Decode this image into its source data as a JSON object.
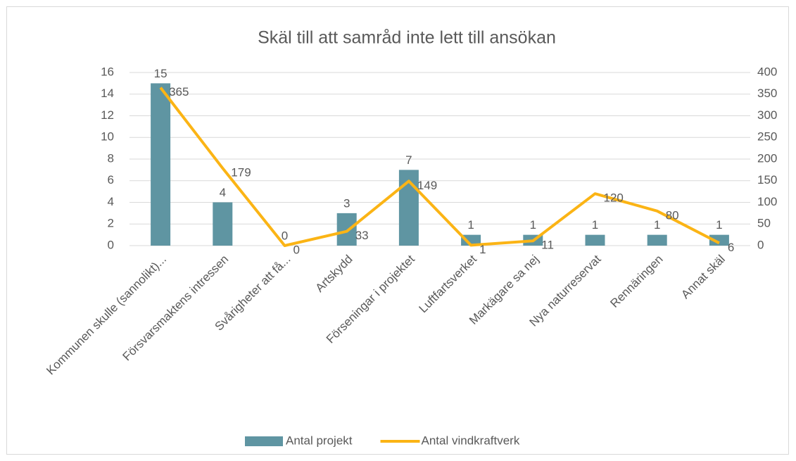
{
  "chart_data": {
    "type": "bar",
    "title": "Skäl till att samråd inte lett till ansökan",
    "categories": [
      "Kommunen skulle (sannolikt)...",
      "Försvarsmaktens intressen",
      "Svårigheter att få...",
      "Artskydd",
      "Förseningar i projektet",
      "Luftfartsverket",
      "Markägare sa nej",
      "Nya naturreservat",
      "Rennäringen",
      "Annat skäl"
    ],
    "series": [
      {
        "name": "Antal projekt",
        "type": "bar",
        "color": "#5f95a2",
        "values": [
          15,
          4,
          0,
          3,
          7,
          1,
          1,
          1,
          1,
          1
        ]
      },
      {
        "name": "Antal vindkraftverk",
        "type": "line",
        "axis": "y2",
        "color": "#fbb415",
        "values": [
          365,
          179,
          0,
          33,
          149,
          1,
          11,
          120,
          80,
          6
        ]
      }
    ],
    "ylim": [
      0,
      16
    ],
    "yticks": [
      0,
      2,
      4,
      6,
      8,
      10,
      12,
      14,
      16
    ],
    "y2lim": [
      0,
      400
    ],
    "y2ticks": [
      0,
      50,
      100,
      150,
      200,
      250,
      300,
      350,
      400
    ],
    "grid": true,
    "legend": "bottom"
  }
}
